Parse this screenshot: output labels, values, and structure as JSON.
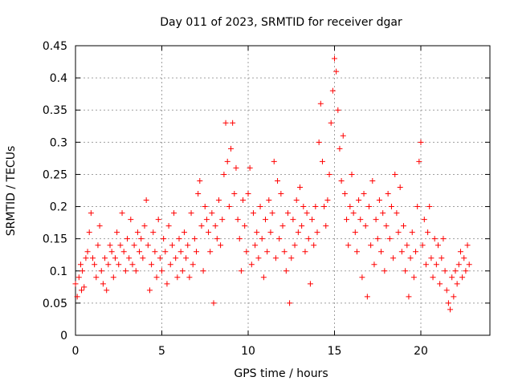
{
  "chart_data": {
    "type": "scatter",
    "title": "Day 011 of 2023, SRMTID for receiver dgar",
    "xlabel": "GPS time / hours",
    "ylabel": "SRMTID / TECUs",
    "xlim": [
      0,
      24
    ],
    "ylim": [
      0,
      0.45
    ],
    "xticks": [
      0,
      5,
      10,
      15,
      20
    ],
    "xtick_labels": [
      "0",
      "5",
      "10",
      "15",
      "20"
    ],
    "yticks": [
      0,
      0.05,
      0.1,
      0.15,
      0.2,
      0.25,
      0.3,
      0.35,
      0.4,
      0.45
    ],
    "ytick_labels": [
      "0",
      "0.05",
      "0.1",
      "0.15",
      "0.2",
      "0.25",
      "0.3",
      "0.35",
      "0.4",
      "0.45"
    ],
    "grid": true,
    "marker": "+",
    "series_color": "#ff0000",
    "series": [
      {
        "name": "SRMTID",
        "points": [
          [
            0.0,
            0.08
          ],
          [
            0.1,
            0.06
          ],
          [
            0.2,
            0.09
          ],
          [
            0.3,
            0.11
          ],
          [
            0.35,
            0.07
          ],
          [
            0.4,
            0.1
          ],
          [
            0.5,
            0.075
          ],
          [
            0.6,
            0.12
          ],
          [
            0.7,
            0.13
          ],
          [
            0.8,
            0.16
          ],
          [
            0.9,
            0.19
          ],
          [
            1.0,
            0.12
          ],
          [
            1.1,
            0.11
          ],
          [
            1.2,
            0.09
          ],
          [
            1.3,
            0.14
          ],
          [
            1.4,
            0.17
          ],
          [
            1.5,
            0.1
          ],
          [
            1.6,
            0.08
          ],
          [
            1.7,
            0.12
          ],
          [
            1.8,
            0.07
          ],
          [
            1.9,
            0.11
          ],
          [
            2.0,
            0.14
          ],
          [
            2.1,
            0.13
          ],
          [
            2.2,
            0.09
          ],
          [
            2.3,
            0.12
          ],
          [
            2.4,
            0.16
          ],
          [
            2.5,
            0.11
          ],
          [
            2.6,
            0.14
          ],
          [
            2.7,
            0.19
          ],
          [
            2.8,
            0.13
          ],
          [
            2.9,
            0.1
          ],
          [
            3.0,
            0.15
          ],
          [
            3.1,
            0.12
          ],
          [
            3.2,
            0.18
          ],
          [
            3.3,
            0.11
          ],
          [
            3.4,
            0.14
          ],
          [
            3.5,
            0.1
          ],
          [
            3.6,
            0.16
          ],
          [
            3.7,
            0.13
          ],
          [
            3.8,
            0.15
          ],
          [
            3.9,
            0.12
          ],
          [
            4.0,
            0.17
          ],
          [
            4.1,
            0.21
          ],
          [
            4.2,
            0.14
          ],
          [
            4.3,
            0.07
          ],
          [
            4.4,
            0.11
          ],
          [
            4.5,
            0.16
          ],
          [
            4.6,
            0.13
          ],
          [
            4.7,
            0.09
          ],
          [
            4.8,
            0.18
          ],
          [
            4.9,
            0.12
          ],
          [
            5.0,
            0.1
          ],
          [
            5.1,
            0.15
          ],
          [
            5.2,
            0.13
          ],
          [
            5.3,
            0.08
          ],
          [
            5.4,
            0.17
          ],
          [
            5.5,
            0.11
          ],
          [
            5.6,
            0.14
          ],
          [
            5.7,
            0.19
          ],
          [
            5.8,
            0.12
          ],
          [
            5.9,
            0.09
          ],
          [
            6.0,
            0.15
          ],
          [
            6.1,
            0.13
          ],
          [
            6.2,
            0.1
          ],
          [
            6.3,
            0.16
          ],
          [
            6.4,
            0.12
          ],
          [
            6.5,
            0.14
          ],
          [
            6.6,
            0.09
          ],
          [
            6.7,
            0.19
          ],
          [
            6.8,
            0.11
          ],
          [
            6.9,
            0.15
          ],
          [
            7.0,
            0.13
          ],
          [
            7.1,
            0.22
          ],
          [
            7.2,
            0.24
          ],
          [
            7.3,
            0.17
          ],
          [
            7.4,
            0.1
          ],
          [
            7.5,
            0.2
          ],
          [
            7.6,
            0.18
          ],
          [
            7.7,
            0.16
          ],
          [
            7.8,
            0.13
          ],
          [
            7.9,
            0.19
          ],
          [
            8.0,
            0.05
          ],
          [
            8.1,
            0.17
          ],
          [
            8.2,
            0.15
          ],
          [
            8.3,
            0.21
          ],
          [
            8.4,
            0.14
          ],
          [
            8.5,
            0.18
          ],
          [
            8.6,
            0.25
          ],
          [
            8.7,
            0.33
          ],
          [
            8.8,
            0.27
          ],
          [
            8.9,
            0.2
          ],
          [
            9.0,
            0.29
          ],
          [
            9.1,
            0.33
          ],
          [
            9.2,
            0.22
          ],
          [
            9.3,
            0.26
          ],
          [
            9.4,
            0.18
          ],
          [
            9.5,
            0.15
          ],
          [
            9.6,
            0.1
          ],
          [
            9.7,
            0.21
          ],
          [
            9.8,
            0.17
          ],
          [
            9.9,
            0.13
          ],
          [
            10.0,
            0.22
          ],
          [
            10.1,
            0.26
          ],
          [
            10.2,
            0.11
          ],
          [
            10.3,
            0.19
          ],
          [
            10.4,
            0.14
          ],
          [
            10.5,
            0.16
          ],
          [
            10.6,
            0.12
          ],
          [
            10.7,
            0.2
          ],
          [
            10.8,
            0.15
          ],
          [
            10.9,
            0.09
          ],
          [
            11.0,
            0.18
          ],
          [
            11.1,
            0.13
          ],
          [
            11.2,
            0.21
          ],
          [
            11.3,
            0.16
          ],
          [
            11.4,
            0.19
          ],
          [
            11.5,
            0.27
          ],
          [
            11.6,
            0.12
          ],
          [
            11.7,
            0.24
          ],
          [
            11.8,
            0.15
          ],
          [
            11.9,
            0.22
          ],
          [
            12.0,
            0.17
          ],
          [
            12.1,
            0.13
          ],
          [
            12.2,
            0.1
          ],
          [
            12.3,
            0.19
          ],
          [
            12.4,
            0.05
          ],
          [
            12.5,
            0.12
          ],
          [
            12.6,
            0.18
          ],
          [
            12.7,
            0.14
          ],
          [
            12.8,
            0.21
          ],
          [
            12.9,
            0.16
          ],
          [
            13.0,
            0.23
          ],
          [
            13.1,
            0.17
          ],
          [
            13.2,
            0.2
          ],
          [
            13.3,
            0.13
          ],
          [
            13.4,
            0.19
          ],
          [
            13.5,
            0.15
          ],
          [
            13.6,
            0.08
          ],
          [
            13.7,
            0.18
          ],
          [
            13.8,
            0.14
          ],
          [
            13.9,
            0.2
          ],
          [
            14.0,
            0.16
          ],
          [
            14.1,
            0.3
          ],
          [
            14.2,
            0.36
          ],
          [
            14.3,
            0.27
          ],
          [
            14.4,
            0.2
          ],
          [
            14.5,
            0.17
          ],
          [
            14.6,
            0.21
          ],
          [
            14.7,
            0.25
          ],
          [
            14.8,
            0.33
          ],
          [
            14.9,
            0.38
          ],
          [
            15.0,
            0.43
          ],
          [
            15.1,
            0.41
          ],
          [
            15.2,
            0.35
          ],
          [
            15.3,
            0.29
          ],
          [
            15.4,
            0.24
          ],
          [
            15.5,
            0.31
          ],
          [
            15.6,
            0.22
          ],
          [
            15.7,
            0.18
          ],
          [
            15.8,
            0.14
          ],
          [
            15.9,
            0.2
          ],
          [
            16.0,
            0.25
          ],
          [
            16.1,
            0.19
          ],
          [
            16.2,
            0.16
          ],
          [
            16.3,
            0.13
          ],
          [
            16.4,
            0.21
          ],
          [
            16.5,
            0.18
          ],
          [
            16.6,
            0.09
          ],
          [
            16.7,
            0.22
          ],
          [
            16.8,
            0.17
          ],
          [
            16.9,
            0.06
          ],
          [
            17.0,
            0.2
          ],
          [
            17.1,
            0.14
          ],
          [
            17.2,
            0.24
          ],
          [
            17.3,
            0.11
          ],
          [
            17.4,
            0.18
          ],
          [
            17.5,
            0.15
          ],
          [
            17.6,
            0.21
          ],
          [
            17.7,
            0.13
          ],
          [
            17.8,
            0.19
          ],
          [
            17.9,
            0.1
          ],
          [
            18.0,
            0.17
          ],
          [
            18.1,
            0.22
          ],
          [
            18.2,
            0.15
          ],
          [
            18.3,
            0.2
          ],
          [
            18.4,
            0.12
          ],
          [
            18.5,
            0.25
          ],
          [
            18.6,
            0.19
          ],
          [
            18.7,
            0.16
          ],
          [
            18.8,
            0.23
          ],
          [
            18.9,
            0.13
          ],
          [
            19.0,
            0.17
          ],
          [
            19.1,
            0.1
          ],
          [
            19.2,
            0.14
          ],
          [
            19.3,
            0.06
          ],
          [
            19.4,
            0.12
          ],
          [
            19.5,
            0.16
          ],
          [
            19.6,
            0.09
          ],
          [
            19.7,
            0.13
          ],
          [
            19.8,
            0.2
          ],
          [
            19.9,
            0.27
          ],
          [
            20.0,
            0.3
          ],
          [
            20.1,
            0.14
          ],
          [
            20.2,
            0.18
          ],
          [
            20.3,
            0.11
          ],
          [
            20.4,
            0.16
          ],
          [
            20.5,
            0.2
          ],
          [
            20.6,
            0.12
          ],
          [
            20.7,
            0.09
          ],
          [
            20.8,
            0.15
          ],
          [
            20.9,
            0.11
          ],
          [
            21.0,
            0.14
          ],
          [
            21.1,
            0.08
          ],
          [
            21.2,
            0.12
          ],
          [
            21.3,
            0.15
          ],
          [
            21.4,
            0.1
          ],
          [
            21.5,
            0.07
          ],
          [
            21.6,
            0.05
          ],
          [
            21.7,
            0.04
          ],
          [
            21.8,
            0.09
          ],
          [
            21.9,
            0.06
          ],
          [
            22.0,
            0.1
          ],
          [
            22.1,
            0.08
          ],
          [
            22.2,
            0.11
          ],
          [
            22.3,
            0.13
          ],
          [
            22.4,
            0.09
          ],
          [
            22.5,
            0.12
          ],
          [
            22.6,
            0.1
          ],
          [
            22.7,
            0.14
          ],
          [
            22.8,
            0.11
          ]
        ]
      }
    ]
  }
}
